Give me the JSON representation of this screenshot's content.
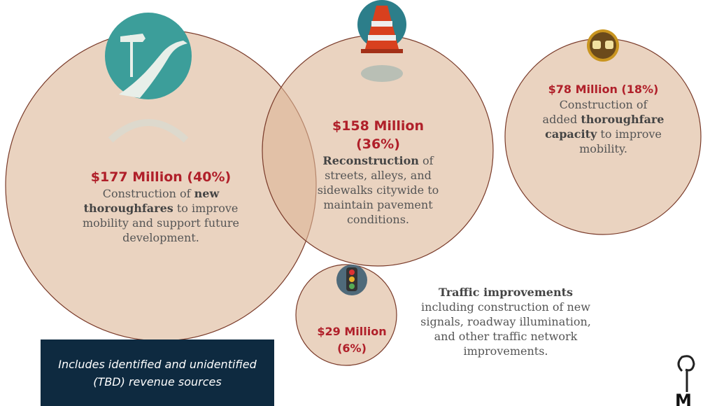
{
  "bubbles": [
    {
      "amount": "$177 Million (40%)",
      "description": [
        {
          "text": "Construction of "
        },
        {
          "text": "new thoroughfares",
          "bold": true
        },
        {
          "text": " to improve mobility and support future development."
        }
      ]
    },
    {
      "amount": "$158 Million (36%)",
      "description": [
        {
          "text": "Reconstruction",
          "bold": true
        },
        {
          "text": " of streets, alleys, and sidewalks citywide to maintain pavement conditions."
        }
      ]
    },
    {
      "amount": "$78 Million (18%)",
      "description": [
        {
          "text": "Construction of added "
        },
        {
          "text": "thoroughfare capacity",
          "bold": true
        },
        {
          "text": " to improve mobility."
        }
      ]
    },
    {
      "amount": "$29 Million (6%)",
      "description": []
    }
  ],
  "traffic_note": [
    {
      "text": "Traffic improvements",
      "bold": true
    },
    {
      "text": " including construction of new signals, roadway illumination, and other traffic network improvements."
    }
  ],
  "note": "Includes identified and unidentified (TBD) revenue sources"
}
